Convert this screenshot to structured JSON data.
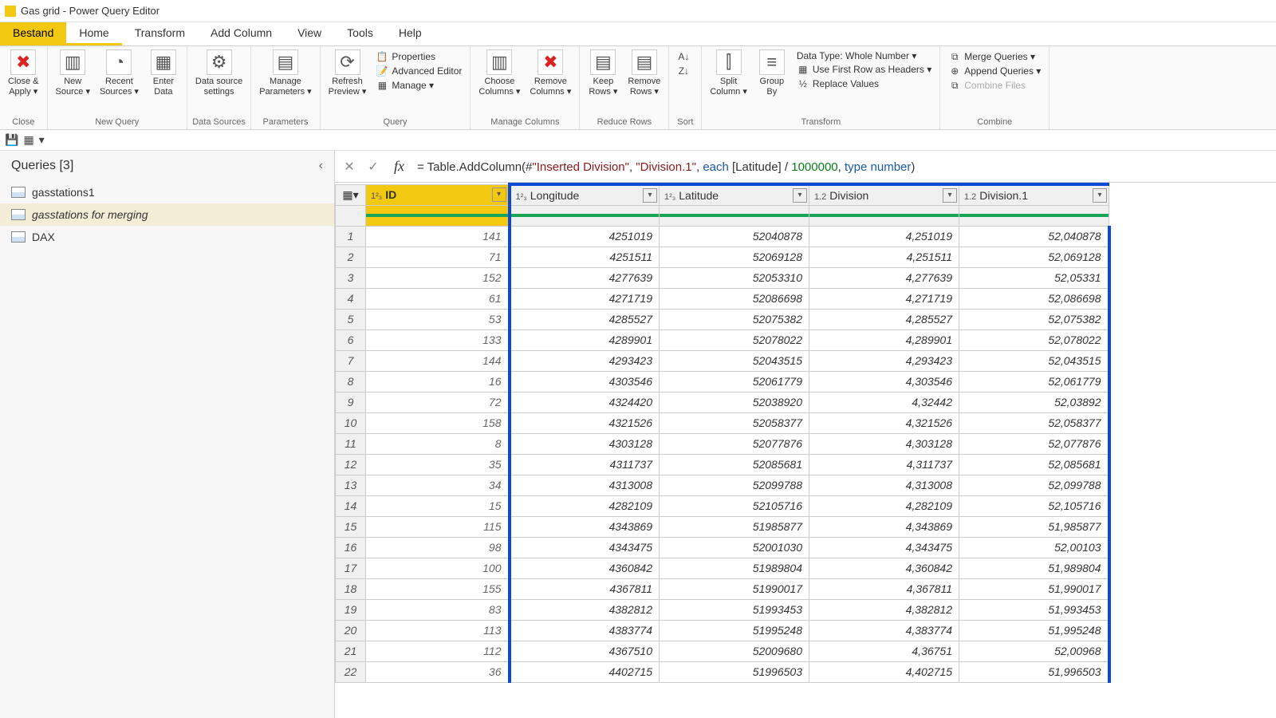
{
  "window_title": "Gas grid - Power Query Editor",
  "menu": {
    "file": "Bestand",
    "home": "Home",
    "transform": "Transform",
    "addcol": "Add Column",
    "view": "View",
    "tools": "Tools",
    "help": "Help"
  },
  "ribbon": {
    "close_group": "Close",
    "close_apply": "Close &\nApply ▾",
    "newquery_group": "New Query",
    "new_source": "New\nSource ▾",
    "recent_sources": "Recent\nSources ▾",
    "enter_data": "Enter\nData",
    "datasources_group": "Data Sources",
    "ds_settings": "Data source\nsettings",
    "parameters_group": "Parameters",
    "manage_params": "Manage\nParameters ▾",
    "query_group": "Query",
    "refresh": "Refresh\nPreview ▾",
    "properties": "Properties",
    "adv_editor": "Advanced Editor",
    "manage": "Manage ▾",
    "cols_group": "Manage Columns",
    "choose_cols": "Choose\nColumns ▾",
    "remove_cols": "Remove\nColumns ▾",
    "rows_group": "Reduce Rows",
    "keep_rows": "Keep\nRows ▾",
    "remove_rows": "Remove\nRows ▾",
    "sort_group": "Sort",
    "transform_group": "Transform",
    "split_col": "Split\nColumn ▾",
    "group_by": "Group\nBy",
    "data_type": "Data Type: Whole Number ▾",
    "first_row": "Use First Row as Headers ▾",
    "replace": "Replace Values",
    "combine_group": "Combine",
    "merge": "Merge Queries ▾",
    "append": "Append Queries ▾",
    "combine_files": "Combine Files"
  },
  "queries_panel": {
    "header": "Queries [3]",
    "q1": "gasstations1",
    "q2": "gasstations for merging",
    "q3": "DAX"
  },
  "formula": {
    "pre": "= Table.AddColumn(#",
    "str1": "\"Inserted Division\"",
    "mid1": ", ",
    "str2": "\"Division.1\"",
    "mid2": ", ",
    "kw1": "each",
    "mid3": " [Latitude] / ",
    "num": "1000000",
    "mid4": ", ",
    "kw2": "type",
    "sp": " ",
    "kw3": "number",
    "end": ")"
  },
  "columns": {
    "id": {
      "type": "1²₃",
      "name": "ID"
    },
    "lon": {
      "type": "1²₃",
      "name": "Longitude"
    },
    "lat": {
      "type": "1²₃",
      "name": "Latitude"
    },
    "div": {
      "type": "1.2",
      "name": "Division"
    },
    "div1": {
      "type": "1.2",
      "name": "Division.1"
    }
  },
  "rows": [
    {
      "id": "141",
      "lon": "4251019",
      "lat": "52040878",
      "div": "4,251019",
      "div1": "52,040878"
    },
    {
      "id": "71",
      "lon": "4251511",
      "lat": "52069128",
      "div": "4,251511",
      "div1": "52,069128"
    },
    {
      "id": "152",
      "lon": "4277639",
      "lat": "52053310",
      "div": "4,277639",
      "div1": "52,05331"
    },
    {
      "id": "61",
      "lon": "4271719",
      "lat": "52086698",
      "div": "4,271719",
      "div1": "52,086698"
    },
    {
      "id": "53",
      "lon": "4285527",
      "lat": "52075382",
      "div": "4,285527",
      "div1": "52,075382"
    },
    {
      "id": "133",
      "lon": "4289901",
      "lat": "52078022",
      "div": "4,289901",
      "div1": "52,078022"
    },
    {
      "id": "144",
      "lon": "4293423",
      "lat": "52043515",
      "div": "4,293423",
      "div1": "52,043515"
    },
    {
      "id": "16",
      "lon": "4303546",
      "lat": "52061779",
      "div": "4,303546",
      "div1": "52,061779"
    },
    {
      "id": "72",
      "lon": "4324420",
      "lat": "52038920",
      "div": "4,32442",
      "div1": "52,03892"
    },
    {
      "id": "158",
      "lon": "4321526",
      "lat": "52058377",
      "div": "4,321526",
      "div1": "52,058377"
    },
    {
      "id": "8",
      "lon": "4303128",
      "lat": "52077876",
      "div": "4,303128",
      "div1": "52,077876"
    },
    {
      "id": "35",
      "lon": "4311737",
      "lat": "52085681",
      "div": "4,311737",
      "div1": "52,085681"
    },
    {
      "id": "34",
      "lon": "4313008",
      "lat": "52099788",
      "div": "4,313008",
      "div1": "52,099788"
    },
    {
      "id": "15",
      "lon": "4282109",
      "lat": "52105716",
      "div": "4,282109",
      "div1": "52,105716"
    },
    {
      "id": "115",
      "lon": "4343869",
      "lat": "51985877",
      "div": "4,343869",
      "div1": "51,985877"
    },
    {
      "id": "98",
      "lon": "4343475",
      "lat": "52001030",
      "div": "4,343475",
      "div1": "52,00103"
    },
    {
      "id": "100",
      "lon": "4360842",
      "lat": "51989804",
      "div": "4,360842",
      "div1": "51,989804"
    },
    {
      "id": "155",
      "lon": "4367811",
      "lat": "51990017",
      "div": "4,367811",
      "div1": "51,990017"
    },
    {
      "id": "83",
      "lon": "4382812",
      "lat": "51993453",
      "div": "4,382812",
      "div1": "51,993453"
    },
    {
      "id": "113",
      "lon": "4383774",
      "lat": "51995248",
      "div": "4,383774",
      "div1": "51,995248"
    },
    {
      "id": "112",
      "lon": "4367510",
      "lat": "52009680",
      "div": "4,36751",
      "div1": "52,00968"
    },
    {
      "id": "36",
      "lon": "4402715",
      "lat": "51996503",
      "div": "4,402715",
      "div1": "51,996503"
    }
  ]
}
